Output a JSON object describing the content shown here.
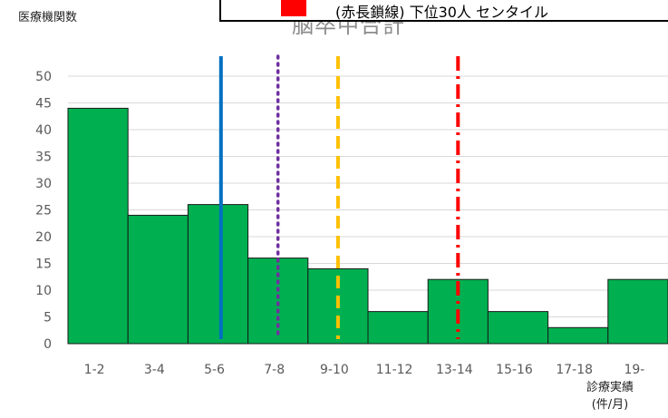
{
  "chart_data": {
    "type": "bar",
    "title": "脳卒中合計",
    "ylabel": "医療機関数",
    "xlabel_line1": "診療実績",
    "xlabel_line2": "(件/月)",
    "legend_text": "(赤長鎖線)    下位30人   センタイル",
    "categories": [
      "1-2",
      "3-4",
      "5-6",
      "7-8",
      "9-10",
      "11-12",
      "13-14",
      "15-16",
      "17-18",
      "19-"
    ],
    "values": [
      44,
      24,
      26,
      16,
      14,
      6,
      12,
      6,
      3,
      12
    ],
    "ylim": [
      0,
      50
    ],
    "yticks": [
      0,
      5,
      10,
      15,
      20,
      25,
      30,
      35,
      40,
      45,
      50
    ],
    "grid": true,
    "bar_color": "#00b050",
    "reference_lines": [
      {
        "x": 2.55,
        "color": "#0070c0",
        "style": "solid"
      },
      {
        "x": 3.5,
        "color": "#7030a0",
        "style": "dotted"
      },
      {
        "x": 4.5,
        "color": "#ffc000",
        "style": "dashed"
      },
      {
        "x": 6.5,
        "color": "#ff0000",
        "style": "dashdot"
      }
    ]
  }
}
